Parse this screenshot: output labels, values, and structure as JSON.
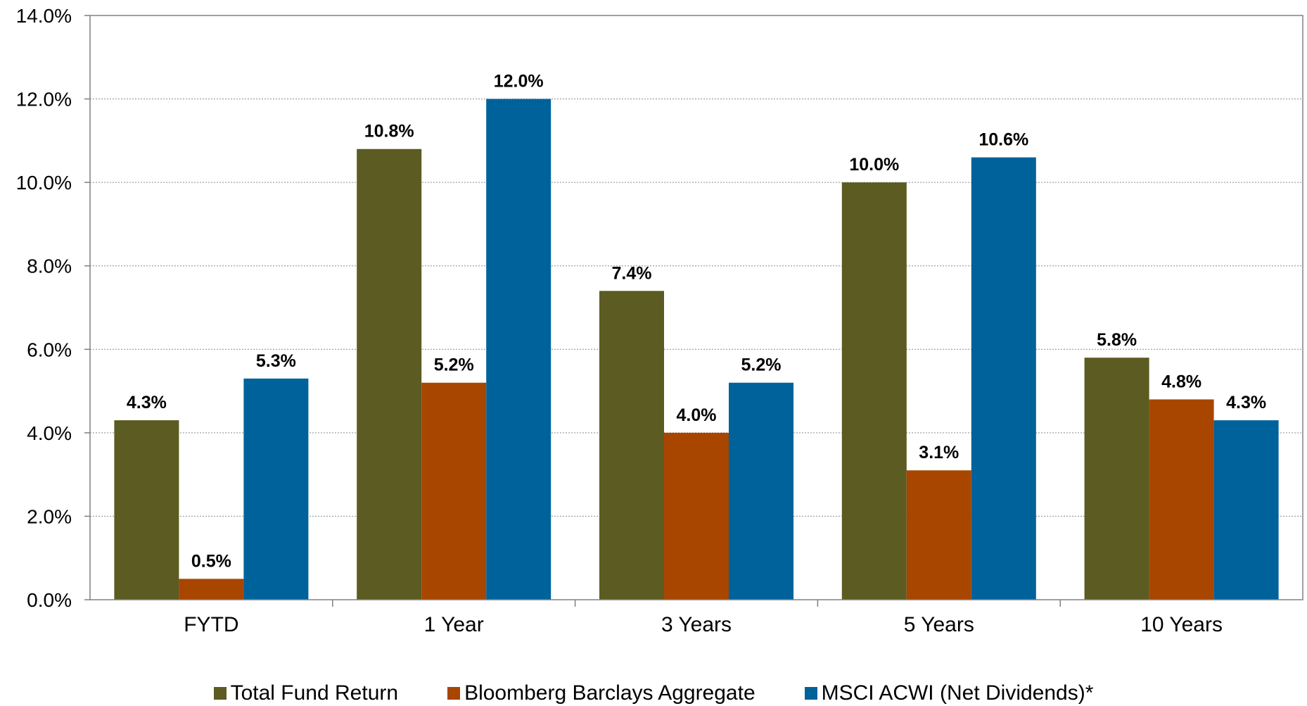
{
  "chart_data": {
    "type": "bar",
    "categories": [
      "FYTD",
      "1 Year",
      "3 Years",
      "5 Years",
      "10 Years"
    ],
    "series": [
      {
        "name": "Total Fund Return",
        "color": "#5b5b22",
        "values": [
          4.3,
          10.8,
          7.4,
          10.0,
          5.8
        ]
      },
      {
        "name": "Bloomberg Barclays Aggregate",
        "color": "#a84600",
        "values": [
          0.5,
          5.2,
          4.0,
          3.1,
          4.8
        ]
      },
      {
        "name": "MSCI ACWI (Net Dividends)*",
        "color": "#00629b",
        "values": [
          5.3,
          12.0,
          5.2,
          10.6,
          4.3
        ]
      }
    ],
    "y_ticks": [
      "0.0%",
      "2.0%",
      "4.0%",
      "6.0%",
      "8.0%",
      "10.0%",
      "12.0%",
      "14.0%"
    ],
    "ylim": [
      0,
      14
    ],
    "value_format": "percent_1dp",
    "grid": "horizontal dotted",
    "legend_position": "bottom-center"
  }
}
